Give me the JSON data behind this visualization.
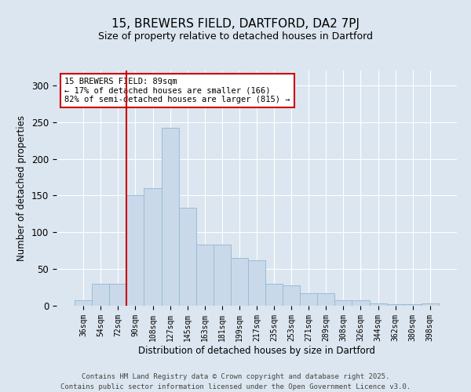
{
  "title1": "15, BREWERS FIELD, DARTFORD, DA2 7PJ",
  "title2": "Size of property relative to detached houses in Dartford",
  "xlabel": "Distribution of detached houses by size in Dartford",
  "ylabel": "Number of detached properties",
  "categories": [
    "36sqm",
    "54sqm",
    "72sqm",
    "90sqm",
    "108sqm",
    "127sqm",
    "145sqm",
    "163sqm",
    "181sqm",
    "199sqm",
    "217sqm",
    "235sqm",
    "253sqm",
    "271sqm",
    "289sqm",
    "308sqm",
    "326sqm",
    "344sqm",
    "362sqm",
    "380sqm",
    "398sqm"
  ],
  "values": [
    8,
    30,
    30,
    150,
    160,
    242,
    133,
    83,
    83,
    65,
    62,
    30,
    28,
    17,
    17,
    7,
    7,
    3,
    2,
    2,
    3
  ],
  "bar_color": "#c9d9ea",
  "bar_edge_color": "#9abcd4",
  "vline_x": 2.5,
  "vline_color": "#cc0000",
  "annotation_text": "15 BREWERS FIELD: 89sqm\n← 17% of detached houses are smaller (166)\n82% of semi-detached houses are larger (815) →",
  "annotation_box_color": "#ffffff",
  "annotation_box_edge": "#cc0000",
  "footer1": "Contains HM Land Registry data © Crown copyright and database right 2025.",
  "footer2": "Contains public sector information licensed under the Open Government Licence v3.0.",
  "background_color": "#dce6f0",
  "plot_background": "#dce6f0",
  "ylim": [
    0,
    320
  ],
  "yticks": [
    0,
    50,
    100,
    150,
    200,
    250,
    300
  ]
}
